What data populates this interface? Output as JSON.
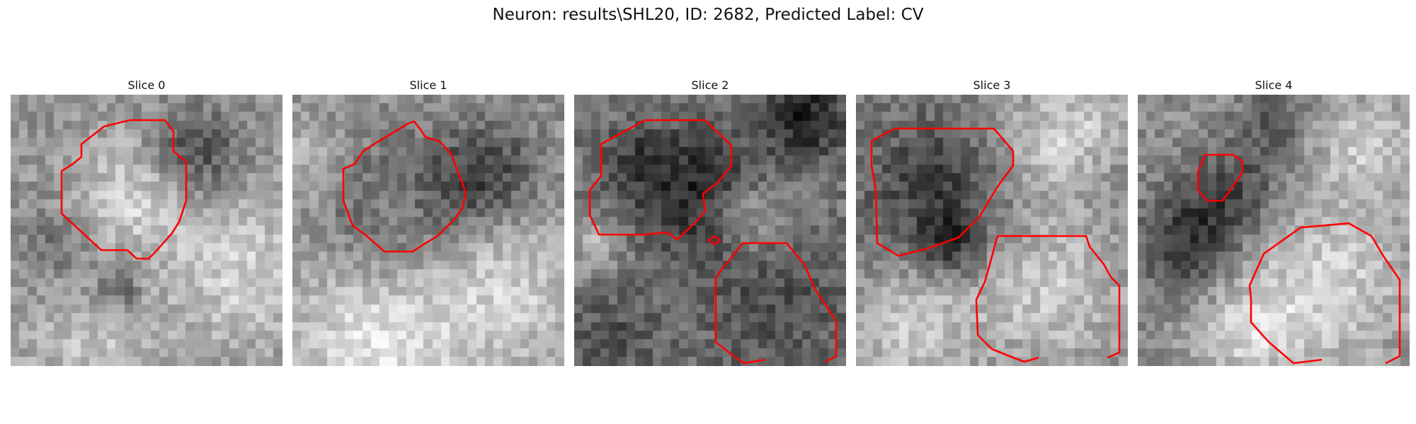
{
  "title": "Neuron: results\\SHL20, ID: 2682, Predicted Label: CV",
  "slices": [
    {
      "label": "Slice 0"
    },
    {
      "label": "Slice 1"
    },
    {
      "label": "Slice 2"
    },
    {
      "label": "Slice 3"
    },
    {
      "label": "Slice 4"
    }
  ],
  "colors": {
    "contour": "#ff0000",
    "background": "#ffffff"
  }
}
